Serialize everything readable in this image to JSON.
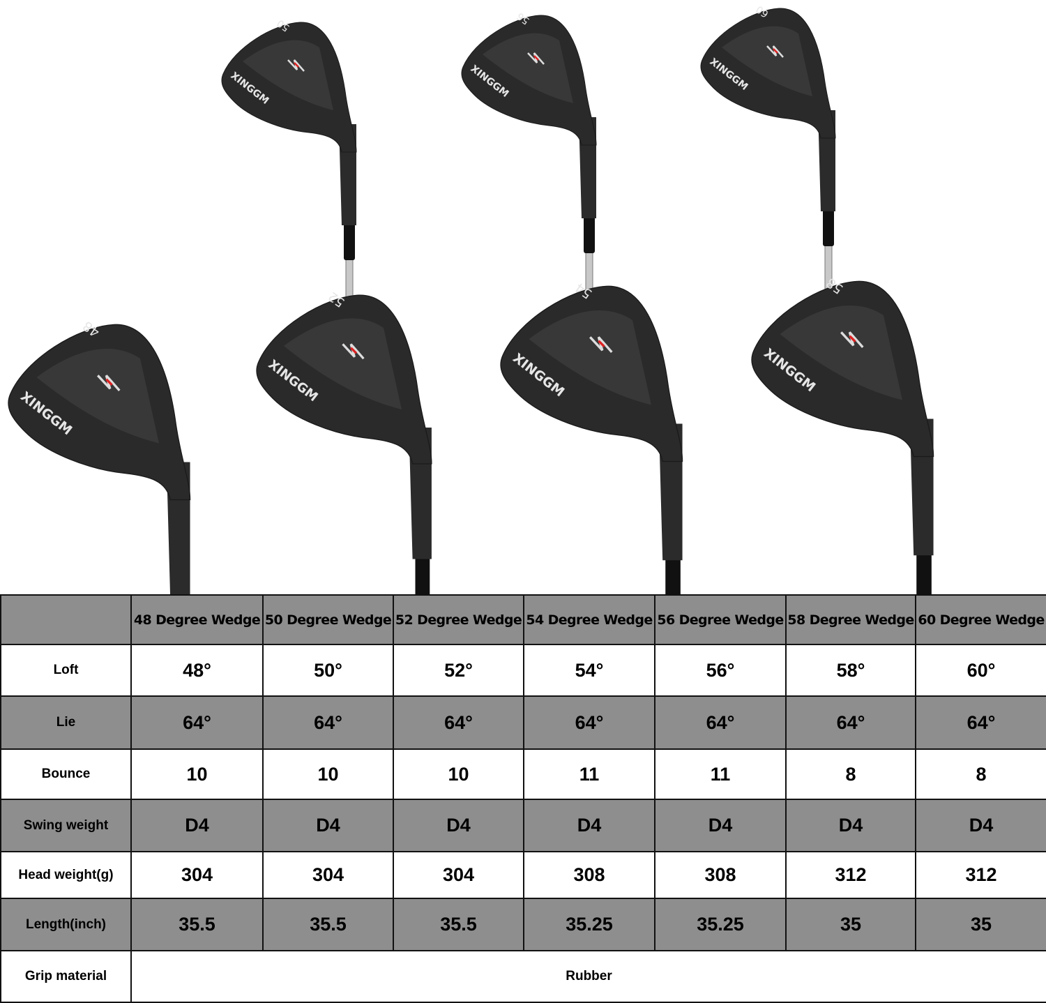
{
  "clubs": [
    {
      "loft_mark": "50",
      "brand": "XINGGM"
    },
    {
      "loft_mark": "56",
      "brand": "XINGGM"
    },
    {
      "loft_mark": "60",
      "brand": "XINGGM"
    },
    {
      "loft_mark": "48",
      "brand": "XINGGM"
    },
    {
      "loft_mark": "52",
      "brand": "XINGGM"
    },
    {
      "loft_mark": "54",
      "brand": "XINGGM"
    },
    {
      "loft_mark": "58",
      "brand": "XINGGM"
    }
  ],
  "table": {
    "columns": [
      "48 Degree Wedge",
      "50 Degree Wedge",
      "52 Degree Wedge",
      "54 Degree Wedge",
      "56 Degree Wedge",
      "58 Degree Wedge",
      "60 Degree Wedge"
    ],
    "rows": [
      {
        "label": "Loft",
        "values": [
          "48°",
          "50°",
          "52°",
          "54°",
          "56°",
          "58°",
          "60°"
        ]
      },
      {
        "label": "Lie",
        "values": [
          "64°",
          "64°",
          "64°",
          "64°",
          "64°",
          "64°",
          "64°"
        ]
      },
      {
        "label": "Bounce",
        "values": [
          "10",
          "10",
          "10",
          "11",
          "11",
          "8",
          "8"
        ]
      },
      {
        "label": "Swing weight",
        "values": [
          "D4",
          "D4",
          "D4",
          "D4",
          "D4",
          "D4",
          "D4"
        ]
      },
      {
        "label": "Head weight(g)",
        "values": [
          "304",
          "304",
          "304",
          "308",
          "308",
          "312",
          "312"
        ]
      },
      {
        "label": "Length(inch)",
        "values": [
          "35.5",
          "35.5",
          "35.5",
          "35.25",
          "35.25",
          "35",
          "35"
        ]
      }
    ],
    "grip": {
      "label": "Grip material",
      "value": "Rubber"
    }
  }
}
